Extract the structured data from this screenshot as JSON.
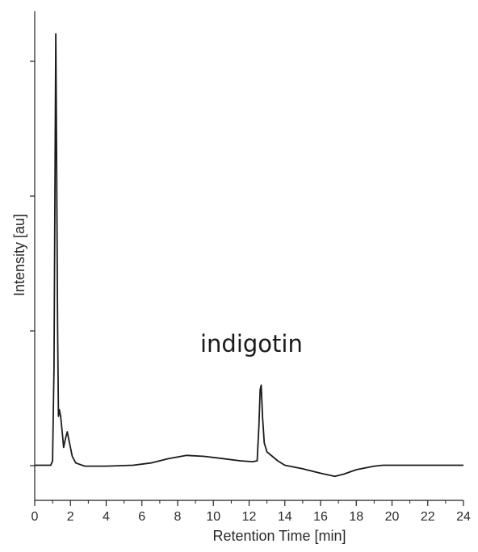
{
  "chart_data": {
    "type": "line",
    "xlabel": "Retention Time [min]",
    "ylabel": "Intensity [au]",
    "xlim": [
      0,
      24
    ],
    "ylim": [
      0,
      1
    ],
    "x_ticks": [
      "0",
      "2",
      "4",
      "6",
      "8",
      "10",
      "12",
      "14",
      "16",
      "18",
      "20",
      "22",
      "24"
    ],
    "y_ticks_labeled": false,
    "grid": false,
    "legend": "none",
    "annotations": [
      {
        "text": "indigotin",
        "x": 12.7,
        "y": 0.2
      }
    ],
    "series": [
      {
        "color": "#1a1a1a",
        "points": [
          [
            0.0,
            0.03
          ],
          [
            0.5,
            0.03
          ],
          [
            0.9,
            0.03
          ],
          [
            1.0,
            0.04
          ],
          [
            1.08,
            0.25
          ],
          [
            1.14,
            0.7
          ],
          [
            1.18,
            1.0
          ],
          [
            1.22,
            0.75
          ],
          [
            1.28,
            0.35
          ],
          [
            1.33,
            0.14
          ],
          [
            1.38,
            0.155
          ],
          [
            1.45,
            0.14
          ],
          [
            1.55,
            0.1
          ],
          [
            1.62,
            0.07
          ],
          [
            1.72,
            0.09
          ],
          [
            1.82,
            0.105
          ],
          [
            1.95,
            0.08
          ],
          [
            2.1,
            0.05
          ],
          [
            2.3,
            0.035
          ],
          [
            2.8,
            0.028
          ],
          [
            4.0,
            0.028
          ],
          [
            5.5,
            0.03
          ],
          [
            6.5,
            0.035
          ],
          [
            7.5,
            0.045
          ],
          [
            8.5,
            0.052
          ],
          [
            9.5,
            0.05
          ],
          [
            10.5,
            0.045
          ],
          [
            11.5,
            0.04
          ],
          [
            12.2,
            0.038
          ],
          [
            12.45,
            0.04
          ],
          [
            12.55,
            0.12
          ],
          [
            12.62,
            0.2
          ],
          [
            12.68,
            0.21
          ],
          [
            12.75,
            0.14
          ],
          [
            12.85,
            0.08
          ],
          [
            13.0,
            0.06
          ],
          [
            13.3,
            0.05
          ],
          [
            13.6,
            0.04
          ],
          [
            14.0,
            0.03
          ],
          [
            15.0,
            0.022
          ],
          [
            16.0,
            0.012
          ],
          [
            16.8,
            0.005
          ],
          [
            17.3,
            0.01
          ],
          [
            18.0,
            0.02
          ],
          [
            19.0,
            0.028
          ],
          [
            19.5,
            0.03
          ],
          [
            21.0,
            0.03
          ],
          [
            23.0,
            0.03
          ],
          [
            24.0,
            0.03
          ]
        ]
      }
    ]
  }
}
